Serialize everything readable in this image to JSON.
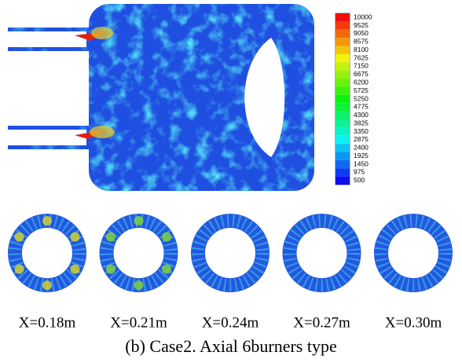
{
  "colorbar": {
    "labels": [
      10000,
      9525,
      9050,
      8575,
      8100,
      7625,
      7150,
      6675,
      6200,
      5725,
      5250,
      4775,
      4300,
      3825,
      3350,
      2875,
      2400,
      1925,
      1450,
      975,
      500
    ]
  },
  "sections": [
    "X=0.18m",
    "X=0.21m",
    "X=0.24m",
    "X=0.27m",
    "X=0.30m"
  ],
  "caption": "(b) Case2. Axial 6burners type"
}
